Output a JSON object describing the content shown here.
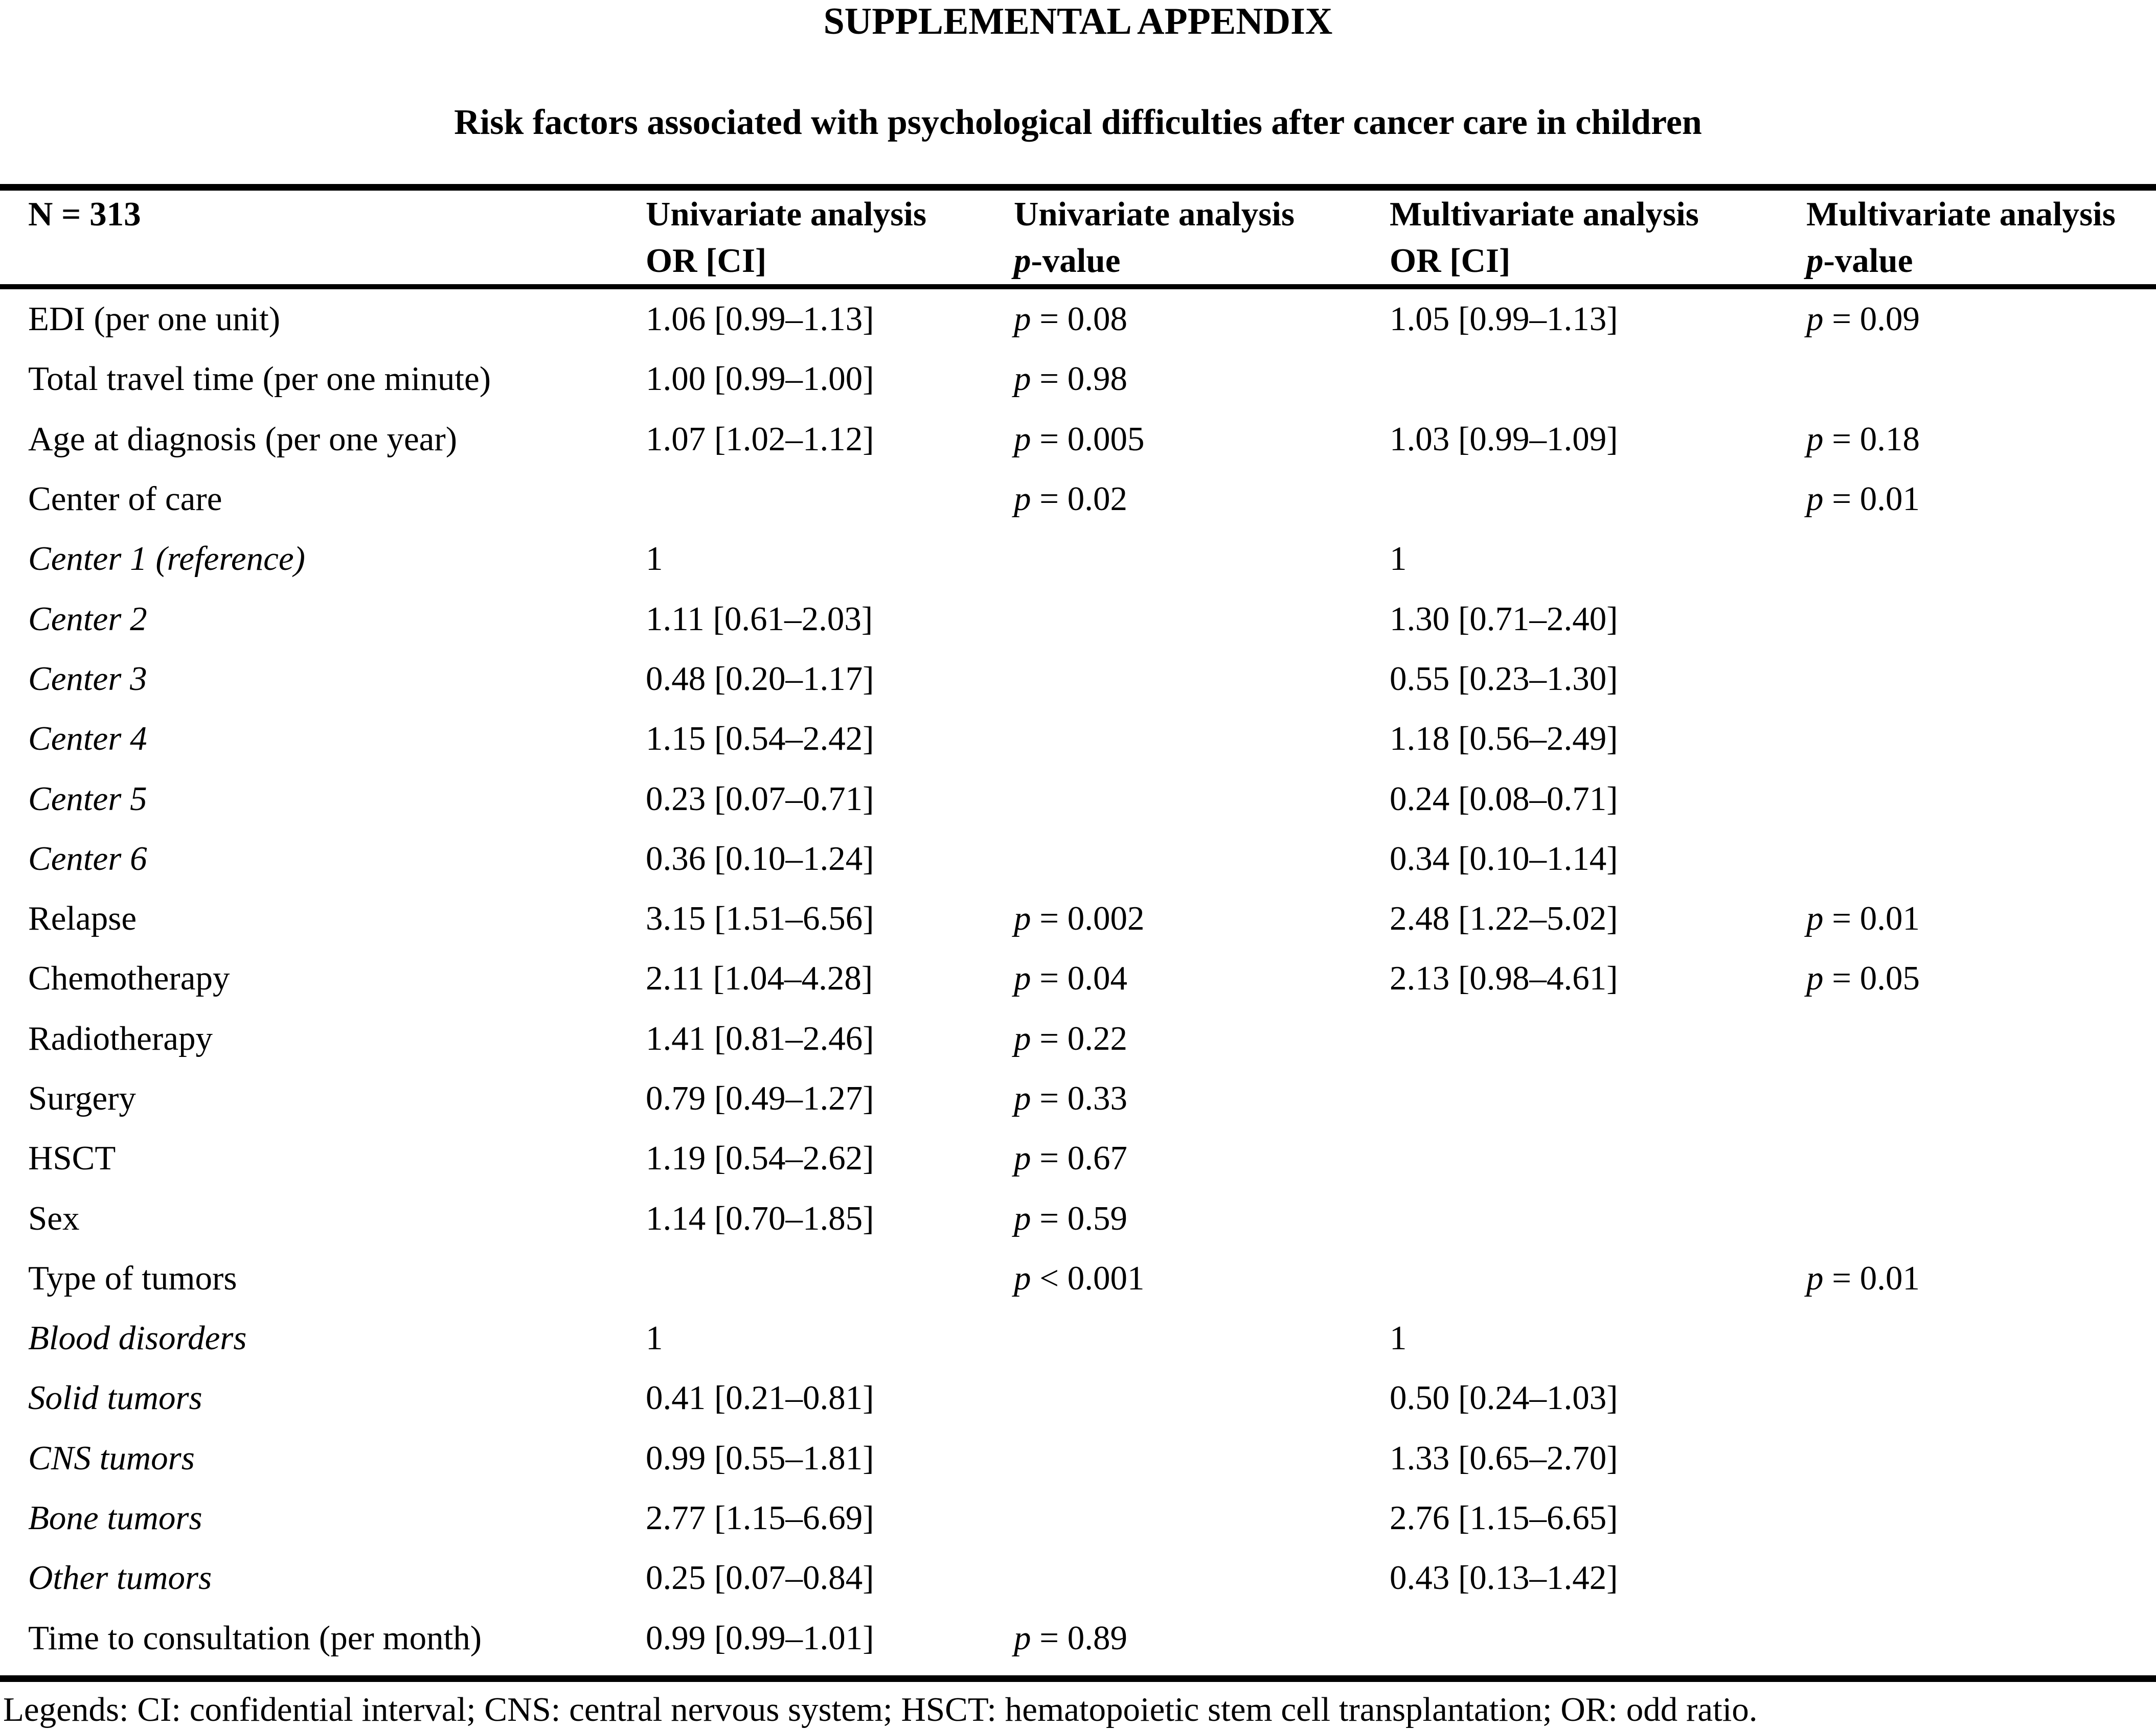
{
  "document": {
    "title": "SUPPLEMENTAL APPENDIX",
    "subtitle": "Risk factors associated with psychological difficulties after cancer care in children",
    "legend": "Legends: CI: confidential interval; CNS: central nervous system; HSCT: hematopoietic stem cell transplantation; OR: odd ratio."
  },
  "table": {
    "headers": [
      {
        "line1": "N = 313",
        "line2": ""
      },
      {
        "line1": "Univariate analysis",
        "line2": "OR [CI]"
      },
      {
        "line1": "Univariate analysis",
        "line2": "p-value"
      },
      {
        "line1": "Multivariate analysis",
        "line2": "OR [CI]"
      },
      {
        "line1": "Multivariate analysis",
        "line2": "p-value"
      }
    ],
    "rows": [
      {
        "label": "EDI (per one unit)",
        "italic": false,
        "uni_or": "1.06 [0.99–1.13]",
        "uni_p": "p = 0.08",
        "multi_or": "1.05 [0.99–1.13]",
        "multi_p": "p = 0.09"
      },
      {
        "label": "Total travel time (per one minute)",
        "italic": false,
        "uni_or": "1.00 [0.99–1.00]",
        "uni_p": "p = 0.98",
        "multi_or": "",
        "multi_p": ""
      },
      {
        "label": "Age at diagnosis (per one year)",
        "italic": false,
        "uni_or": "1.07 [1.02–1.12]",
        "uni_p": "p = 0.005",
        "multi_or": "1.03 [0.99–1.09]",
        "multi_p": "p = 0.18"
      },
      {
        "label": "Center of care",
        "italic": false,
        "uni_or": "",
        "uni_p": "p = 0.02",
        "multi_or": "",
        "multi_p": "p = 0.01"
      },
      {
        "label": "Center 1 (reference)",
        "italic": true,
        "uni_or": "1",
        "uni_p": "",
        "multi_or": "1",
        "multi_p": ""
      },
      {
        "label": "Center 2",
        "italic": true,
        "uni_or": "1.11 [0.61–2.03]",
        "uni_p": "",
        "multi_or": "1.30 [0.71–2.40]",
        "multi_p": ""
      },
      {
        "label": "Center 3",
        "italic": true,
        "uni_or": "0.48 [0.20–1.17]",
        "uni_p": "",
        "multi_or": "0.55 [0.23–1.30]",
        "multi_p": ""
      },
      {
        "label": "Center 4",
        "italic": true,
        "uni_or": "1.15 [0.54–2.42]",
        "uni_p": "",
        "multi_or": "1.18 [0.56–2.49]",
        "multi_p": ""
      },
      {
        "label": "Center 5",
        "italic": true,
        "uni_or": "0.23 [0.07–0.71]",
        "uni_p": "",
        "multi_or": "0.24 [0.08–0.71]",
        "multi_p": ""
      },
      {
        "label": "Center 6",
        "italic": true,
        "uni_or": "0.36 [0.10–1.24]",
        "uni_p": "",
        "multi_or": "0.34 [0.10–1.14]",
        "multi_p": ""
      },
      {
        "label": "Relapse",
        "italic": false,
        "uni_or": "3.15 [1.51–6.56]",
        "uni_p": "p = 0.002",
        "multi_or": "2.48 [1.22–5.02]",
        "multi_p": "p = 0.01"
      },
      {
        "label": "Chemotherapy",
        "italic": false,
        "uni_or": "2.11 [1.04–4.28]",
        "uni_p": "p = 0.04",
        "multi_or": "2.13 [0.98–4.61]",
        "multi_p": "p = 0.05"
      },
      {
        "label": "Radiotherapy",
        "italic": false,
        "uni_or": "1.41 [0.81–2.46]",
        "uni_p": "p = 0.22",
        "multi_or": "",
        "multi_p": ""
      },
      {
        "label": "Surgery",
        "italic": false,
        "uni_or": "0.79 [0.49–1.27]",
        "uni_p": "p = 0.33",
        "multi_or": "",
        "multi_p": ""
      },
      {
        "label": "HSCT",
        "italic": false,
        "uni_or": "1.19 [0.54–2.62]",
        "uni_p": "p = 0.67",
        "multi_or": "",
        "multi_p": ""
      },
      {
        "label": "Sex",
        "italic": false,
        "uni_or": "1.14 [0.70–1.85]",
        "uni_p": "p = 0.59",
        "multi_or": "",
        "multi_p": ""
      },
      {
        "label": "Type of tumors",
        "italic": false,
        "uni_or": "",
        "uni_p": "p < 0.001",
        "multi_or": "",
        "multi_p": "p = 0.01"
      },
      {
        "label": "Blood disorders",
        "italic": true,
        "uni_or": "1",
        "uni_p": "",
        "multi_or": "1",
        "multi_p": ""
      },
      {
        "label": "Solid tumors",
        "italic": true,
        "uni_or": "0.41 [0.21–0.81]",
        "uni_p": "",
        "multi_or": "0.50 [0.24–1.03]",
        "multi_p": ""
      },
      {
        "label": "CNS tumors",
        "italic": true,
        "uni_or": "0.99 [0.55–1.81]",
        "uni_p": "",
        "multi_or": "1.33 [0.65–2.70]",
        "multi_p": ""
      },
      {
        "label": "Bone tumors",
        "italic": true,
        "uni_or": "2.77 [1.15–6.69]",
        "uni_p": "",
        "multi_or": "2.76 [1.15–6.65]",
        "multi_p": ""
      },
      {
        "label": "Other tumors",
        "italic": true,
        "uni_or": "0.25 [0.07–0.84]",
        "uni_p": "",
        "multi_or": "0.43 [0.13–1.42]",
        "multi_p": ""
      },
      {
        "label": "Time to consultation (per month)",
        "italic": false,
        "uni_or": "0.99 [0.99–1.01]",
        "uni_p": "p = 0.89",
        "multi_or": "",
        "multi_p": ""
      }
    ]
  }
}
